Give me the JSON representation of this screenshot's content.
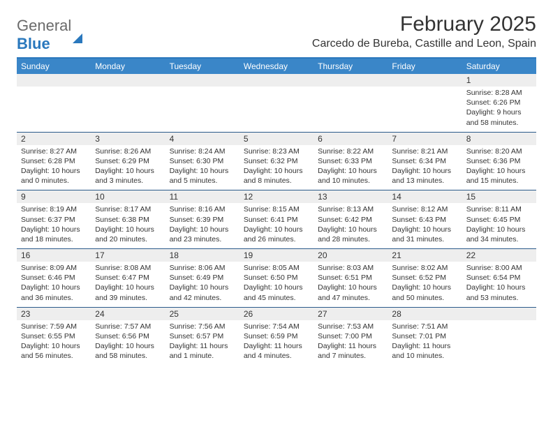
{
  "logo": {
    "part1": "General",
    "part2": "Blue"
  },
  "title": "February 2025",
  "location": "Carcedo de Bureba, Castille and Leon, Spain",
  "colors": {
    "header_bar": "#3a86c8",
    "header_border": "#2a78bd",
    "daynum_bg": "#eeeeee",
    "text": "#333333",
    "logo_gray": "#6a6a6a",
    "logo_blue": "#2a78bd"
  },
  "day_headers": [
    "Sunday",
    "Monday",
    "Tuesday",
    "Wednesday",
    "Thursday",
    "Friday",
    "Saturday"
  ],
  "weeks": [
    [
      null,
      null,
      null,
      null,
      null,
      null,
      {
        "n": "1",
        "sunrise": "8:28 AM",
        "sunset": "6:26 PM",
        "daylight": "9 hours and 58 minutes."
      }
    ],
    [
      {
        "n": "2",
        "sunrise": "8:27 AM",
        "sunset": "6:28 PM",
        "daylight": "10 hours and 0 minutes."
      },
      {
        "n": "3",
        "sunrise": "8:26 AM",
        "sunset": "6:29 PM",
        "daylight": "10 hours and 3 minutes."
      },
      {
        "n": "4",
        "sunrise": "8:24 AM",
        "sunset": "6:30 PM",
        "daylight": "10 hours and 5 minutes."
      },
      {
        "n": "5",
        "sunrise": "8:23 AM",
        "sunset": "6:32 PM",
        "daylight": "10 hours and 8 minutes."
      },
      {
        "n": "6",
        "sunrise": "8:22 AM",
        "sunset": "6:33 PM",
        "daylight": "10 hours and 10 minutes."
      },
      {
        "n": "7",
        "sunrise": "8:21 AM",
        "sunset": "6:34 PM",
        "daylight": "10 hours and 13 minutes."
      },
      {
        "n": "8",
        "sunrise": "8:20 AM",
        "sunset": "6:36 PM",
        "daylight": "10 hours and 15 minutes."
      }
    ],
    [
      {
        "n": "9",
        "sunrise": "8:19 AM",
        "sunset": "6:37 PM",
        "daylight": "10 hours and 18 minutes."
      },
      {
        "n": "10",
        "sunrise": "8:17 AM",
        "sunset": "6:38 PM",
        "daylight": "10 hours and 20 minutes."
      },
      {
        "n": "11",
        "sunrise": "8:16 AM",
        "sunset": "6:39 PM",
        "daylight": "10 hours and 23 minutes."
      },
      {
        "n": "12",
        "sunrise": "8:15 AM",
        "sunset": "6:41 PM",
        "daylight": "10 hours and 26 minutes."
      },
      {
        "n": "13",
        "sunrise": "8:13 AM",
        "sunset": "6:42 PM",
        "daylight": "10 hours and 28 minutes."
      },
      {
        "n": "14",
        "sunrise": "8:12 AM",
        "sunset": "6:43 PM",
        "daylight": "10 hours and 31 minutes."
      },
      {
        "n": "15",
        "sunrise": "8:11 AM",
        "sunset": "6:45 PM",
        "daylight": "10 hours and 34 minutes."
      }
    ],
    [
      {
        "n": "16",
        "sunrise": "8:09 AM",
        "sunset": "6:46 PM",
        "daylight": "10 hours and 36 minutes."
      },
      {
        "n": "17",
        "sunrise": "8:08 AM",
        "sunset": "6:47 PM",
        "daylight": "10 hours and 39 minutes."
      },
      {
        "n": "18",
        "sunrise": "8:06 AM",
        "sunset": "6:49 PM",
        "daylight": "10 hours and 42 minutes."
      },
      {
        "n": "19",
        "sunrise": "8:05 AM",
        "sunset": "6:50 PM",
        "daylight": "10 hours and 45 minutes."
      },
      {
        "n": "20",
        "sunrise": "8:03 AM",
        "sunset": "6:51 PM",
        "daylight": "10 hours and 47 minutes."
      },
      {
        "n": "21",
        "sunrise": "8:02 AM",
        "sunset": "6:52 PM",
        "daylight": "10 hours and 50 minutes."
      },
      {
        "n": "22",
        "sunrise": "8:00 AM",
        "sunset": "6:54 PM",
        "daylight": "10 hours and 53 minutes."
      }
    ],
    [
      {
        "n": "23",
        "sunrise": "7:59 AM",
        "sunset": "6:55 PM",
        "daylight": "10 hours and 56 minutes."
      },
      {
        "n": "24",
        "sunrise": "7:57 AM",
        "sunset": "6:56 PM",
        "daylight": "10 hours and 58 minutes."
      },
      {
        "n": "25",
        "sunrise": "7:56 AM",
        "sunset": "6:57 PM",
        "daylight": "11 hours and 1 minute."
      },
      {
        "n": "26",
        "sunrise": "7:54 AM",
        "sunset": "6:59 PM",
        "daylight": "11 hours and 4 minutes."
      },
      {
        "n": "27",
        "sunrise": "7:53 AM",
        "sunset": "7:00 PM",
        "daylight": "11 hours and 7 minutes."
      },
      {
        "n": "28",
        "sunrise": "7:51 AM",
        "sunset": "7:01 PM",
        "daylight": "11 hours and 10 minutes."
      },
      null
    ]
  ],
  "labels": {
    "sunrise": "Sunrise:",
    "sunset": "Sunset:",
    "daylight": "Daylight:"
  }
}
